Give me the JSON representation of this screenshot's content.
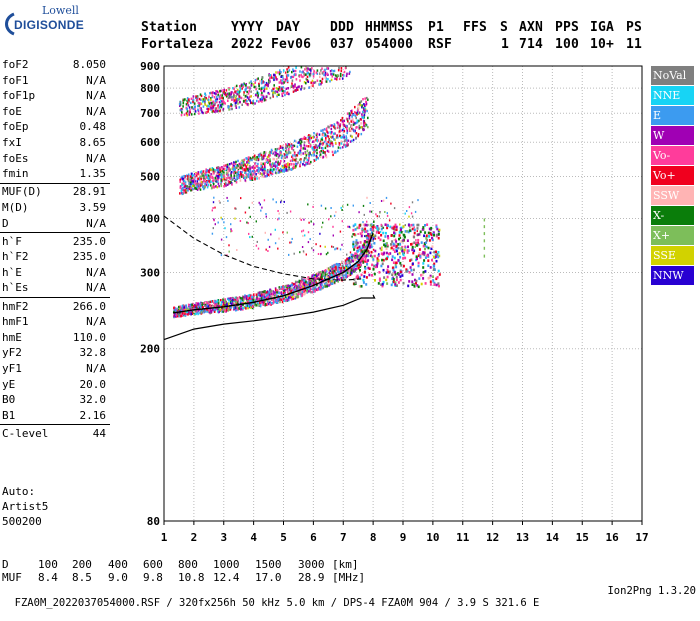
{
  "logo": {
    "line1": "Lowell",
    "line2": "DIGISONDE"
  },
  "header": {
    "labels": [
      "Station",
      "YYYY",
      "DAY",
      "DDD",
      "HHMMSS",
      "P1",
      "FFS",
      "S",
      "AXN",
      "PPS",
      "IGA",
      "PS"
    ],
    "values": [
      "Fortaleza",
      "2022",
      "Fev06",
      "037",
      "054000",
      "RSF",
      "",
      "1",
      "714",
      "100",
      "10+",
      "11"
    ]
  },
  "params": [
    {
      "k": "foF2",
      "v": "8.050"
    },
    {
      "k": "foF1",
      "v": "N/A"
    },
    {
      "k": "foF1p",
      "v": "N/A"
    },
    {
      "k": "foE",
      "v": "N/A"
    },
    {
      "k": "foEp",
      "v": "0.48"
    },
    {
      "k": "fxI",
      "v": "8.65"
    },
    {
      "k": "foEs",
      "v": "N/A"
    },
    {
      "k": "fmin",
      "v": "1.35"
    },
    {
      "k": "MUF(D)",
      "v": "28.91"
    },
    {
      "k": "M(D)",
      "v": "3.59"
    },
    {
      "k": "D",
      "v": "N/A"
    },
    {
      "k": "h`F",
      "v": "235.0"
    },
    {
      "k": "h`F2",
      "v": "235.0"
    },
    {
      "k": "h`E",
      "v": "N/A"
    },
    {
      "k": "h`Es",
      "v": "N/A"
    },
    {
      "k": "hmF2",
      "v": "266.0"
    },
    {
      "k": "hmF1",
      "v": "N/A"
    },
    {
      "k": "hmE",
      "v": "110.0"
    },
    {
      "k": "yF2",
      "v": "32.8"
    },
    {
      "k": "yF1",
      "v": "N/A"
    },
    {
      "k": "yE",
      "v": "20.0"
    },
    {
      "k": "B0",
      "v": "32.0"
    },
    {
      "k": "B1",
      "v": "2.16"
    },
    {
      "k": "C-level",
      "v": "44"
    }
  ],
  "auto": {
    "line1": "Auto:",
    "line2": "Artist5",
    "line3": "500200"
  },
  "legend": [
    {
      "label": "NoVal",
      "color": "#7f7f7f"
    },
    {
      "label": "NNE",
      "color": "#17d4f5"
    },
    {
      "label": "E",
      "color": "#3c9bf0"
    },
    {
      "label": "W",
      "color": "#a000b4"
    },
    {
      "label": "Vo-",
      "color": "#ff3c9b"
    },
    {
      "label": "Vo+",
      "color": "#f0001e"
    },
    {
      "label": "SSW",
      "color": "#ffb4b4"
    },
    {
      "label": "X-",
      "color": "#0a7d0a"
    },
    {
      "label": "X+",
      "color": "#7dbe5a"
    },
    {
      "label": "SSE",
      "color": "#d2d200"
    },
    {
      "label": "NNW",
      "color": "#2800d2"
    }
  ],
  "bottom": {
    "d_label": "D",
    "d_values": [
      "100",
      "200",
      "400",
      "600",
      "800",
      "1000",
      "1500",
      "3000"
    ],
    "d_unit": "[km]",
    "muf_label": "MUF",
    "muf_values": [
      "8.4",
      "8.5",
      "9.0",
      "9.8",
      "10.8",
      "12.4",
      "17.0",
      "28.9"
    ],
    "muf_unit": "[MHz]"
  },
  "footer": {
    "left": "FZA0M_2022037054000.RSF / 320fx256h 50 kHz 5.0 km / DPS-4 FZA0M 904 / 3.9 S 321.6 E",
    "right": "Ion2Png 1.3.20"
  },
  "chart_data": {
    "type": "scatter",
    "title": "",
    "xlabel": "",
    "ylabel": "",
    "xlim": [
      1,
      17
    ],
    "ylim": [
      80,
      900
    ],
    "yscale": "log",
    "x_ticks": [
      "1",
      "2",
      "3",
      "4",
      "5",
      "6",
      "7",
      "8",
      "9",
      "10",
      "11",
      "12",
      "13",
      "14",
      "15",
      "16",
      "17"
    ],
    "y_ticks": [
      "80",
      "200",
      "300",
      "400",
      "500",
      "600",
      "700",
      "800",
      "900"
    ],
    "grid": "dotted",
    "series": [
      {
        "name": "trace_1hop",
        "x": [
          1.3,
          2,
          3,
          4,
          5,
          6,
          6.5,
          7,
          7.5,
          7.8,
          8.0
        ],
        "y": [
          242,
          246,
          250,
          256,
          265,
          280,
          290,
          300,
          318,
          340,
          370
        ]
      },
      {
        "name": "trace_2hop",
        "x": [
          1.5,
          2,
          3,
          4,
          5,
          6,
          6.8,
          7.3,
          7.8
        ],
        "y": [
          470,
          480,
          495,
          515,
          540,
          570,
          600,
          640,
          690
        ]
      },
      {
        "name": "trace_3hop",
        "x": [
          1.5,
          2,
          3,
          4,
          5,
          6,
          6.8,
          7.2
        ],
        "y": [
          712,
          722,
          740,
          770,
          810,
          855,
          890,
          900
        ]
      },
      {
        "name": "profile",
        "x": [
          1.0,
          2,
          3,
          4,
          5,
          6,
          7,
          7.6,
          8.05,
          8.0
        ],
        "y": [
          210,
          222,
          228,
          232,
          237,
          243,
          252,
          262,
          262,
          266
        ]
      },
      {
        "name": "dashed",
        "x": [
          1.0,
          2,
          3,
          4,
          5,
          6,
          7,
          7.6
        ],
        "y": [
          405,
          360,
          330,
          310,
          298,
          290,
          288,
          290
        ]
      }
    ]
  }
}
